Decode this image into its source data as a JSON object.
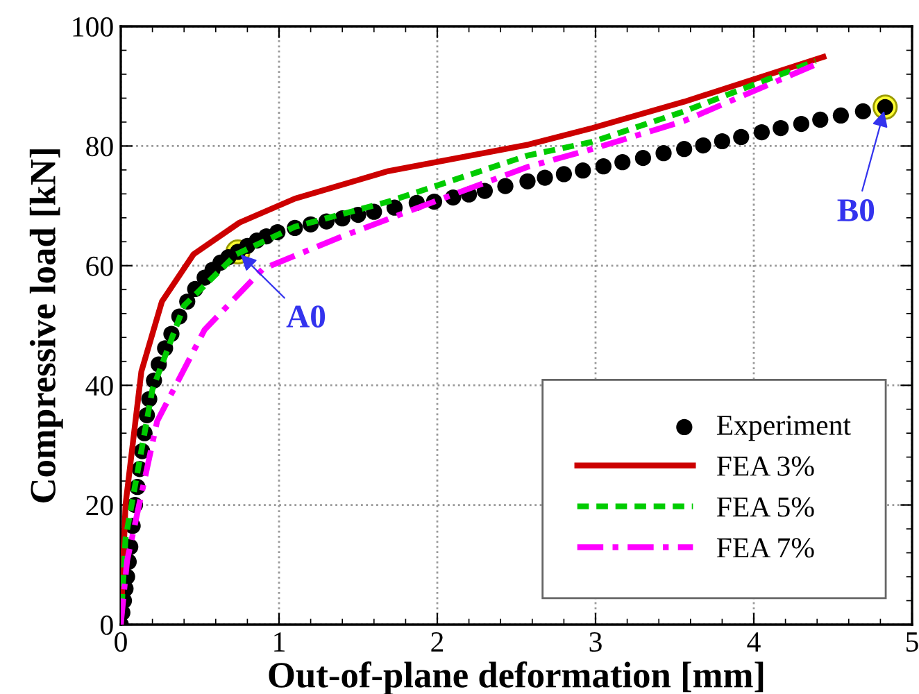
{
  "chart_data": {
    "type": "line",
    "xlabel": "Out-of-plane deformation [mm]",
    "ylabel": "Compressive load [kN]",
    "xlim": [
      0,
      5
    ],
    "ylim": [
      0,
      100
    ],
    "xticks": [
      0,
      1,
      2,
      3,
      4,
      5
    ],
    "yticks": [
      0,
      20,
      40,
      60,
      80,
      100
    ],
    "grid": true,
    "legend": "bottom right",
    "series": [
      {
        "name": "Experiment",
        "type": "scatter",
        "color": "#000000",
        "marker": "circle",
        "x": [
          0,
          0.01,
          0.02,
          0.03,
          0.04,
          0.05,
          0.06,
          0.075,
          0.09,
          0.105,
          0.12,
          0.135,
          0.15,
          0.165,
          0.18,
          0.21,
          0.24,
          0.28,
          0.32,
          0.37,
          0.42,
          0.47,
          0.53,
          0.58,
          0.63,
          0.68,
          0.74,
          0.8,
          0.86,
          0.92,
          0.99,
          1.1,
          1.2,
          1.3,
          1.4,
          1.5,
          1.6,
          1.73,
          1.87,
          1.98,
          2.1,
          2.2,
          2.3,
          2.43,
          2.57,
          2.68,
          2.8,
          2.92,
          3.05,
          3.17,
          3.3,
          3.43,
          3.56,
          3.68,
          3.8,
          3.92,
          4.05,
          4.17,
          4.3,
          4.42,
          4.55,
          4.69,
          4.83
        ],
        "values": [
          0,
          2,
          4,
          6,
          8,
          10.5,
          13,
          16.5,
          20,
          23,
          26,
          29,
          32,
          35,
          37.7,
          40.8,
          43.5,
          46.2,
          48.6,
          51.5,
          54,
          56.1,
          58,
          59.3,
          60.5,
          61.4,
          62.3,
          63.3,
          64.2,
          64.9,
          65.6,
          66.3,
          66.9,
          67.4,
          67.9,
          68.5,
          69,
          69.7,
          70.5,
          70.7,
          71.4,
          71.9,
          72.5,
          73.3,
          74.1,
          74.7,
          75.3,
          75.9,
          76.6,
          77.3,
          78,
          78.8,
          79.5,
          80.1,
          80.8,
          81.5,
          82.3,
          83,
          83.7,
          84.4,
          85.1,
          85.8,
          86.5
        ]
      },
      {
        "name": "FEA 3%",
        "color": "#cc0000",
        "marker": "none",
        "line_style": "solid",
        "x": [
          0,
          0.03,
          0.13,
          0.26,
          0.46,
          0.75,
          1.1,
          1.69,
          2.57,
          2.98,
          3.56,
          4.44
        ],
        "values": [
          0,
          20,
          42.3,
          54,
          61.9,
          67.2,
          71.2,
          75.8,
          80.2,
          83,
          87.4,
          94.9
        ]
      },
      {
        "name": "FEA 5%",
        "color": "#00cc00",
        "marker": "none",
        "line_style": "dotted",
        "x": [
          0,
          0.03,
          0.2,
          0.4,
          0.73,
          1.1,
          1.69,
          2.57,
          2.98,
          3.56,
          4.39
        ],
        "values": [
          0,
          14.4,
          39.3,
          53.3,
          61.9,
          66.5,
          70.7,
          78.4,
          80.7,
          85.8,
          94.2
        ]
      },
      {
        "name": "FEA 7%",
        "color": "#ff00ff",
        "marker": "none",
        "line_style": "dashdot",
        "x": [
          0,
          0.04,
          0.23,
          0.53,
          0.9,
          1.4,
          1.98,
          2.57,
          2.98,
          3.56,
          4.38
        ],
        "values": [
          0,
          10.7,
          34,
          49.3,
          59.5,
          64.9,
          70.7,
          76.5,
          79.5,
          84.2,
          93.5
        ]
      }
    ],
    "annotations": [
      {
        "text": "A0",
        "x": 0.74,
        "y": 62.3
      },
      {
        "text": "B0",
        "x": 4.83,
        "y": 86.5
      }
    ]
  }
}
